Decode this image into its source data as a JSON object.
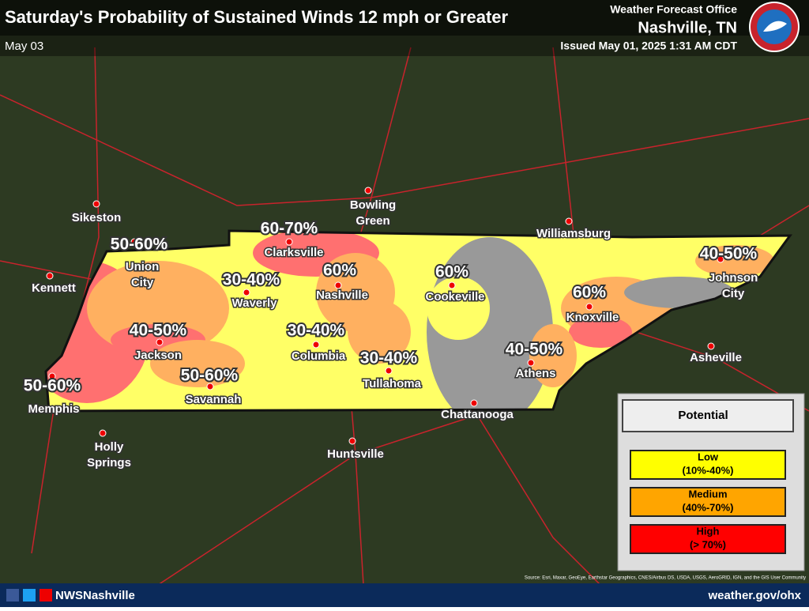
{
  "header": {
    "title": "Saturday's Probability of Sustained Winds 12 mph or Greater",
    "date": "May 03",
    "office": "Weather Forecast Office",
    "location": "Nashville, TN",
    "issued": "Issued May 01, 2025 1:31 AM CDT"
  },
  "cities": [
    "Sikeston",
    "Kennett",
    "Union City",
    "Memphis",
    "Jackson",
    "Savannah",
    "Holly Springs",
    "Waverly",
    "Clarksville",
    "Nashville",
    "Columbia",
    "Tullahoma",
    "Huntsville",
    "Bowling Green",
    "Cookeville",
    "Williamsburg",
    "Knoxville",
    "Athens",
    "Chattanooga",
    "Johnson City",
    "Asheville"
  ],
  "probability_labels": [
    "50-60%",
    "60-70%",
    "30-40%",
    "60%",
    "60%",
    "60%",
    "40-50%",
    "40-50%",
    "30-40%",
    "30-40%",
    "40-50%",
    "50-60%",
    "50-60%"
  ],
  "legend": {
    "title": "Potential",
    "items": [
      {
        "label": "Low",
        "range": "(10%-40%)",
        "color": "#ffff00"
      },
      {
        "label": "Medium",
        "range": "(40%-70%)",
        "color": "#ffa500"
      },
      {
        "label": "High",
        "range": "(> 70%)",
        "color": "#ff0000"
      }
    ]
  },
  "footer": {
    "social": "NWSNashville",
    "url": "weather.gov/ohx",
    "source": "Source: Esri, Maxar, GeoEye, Earthstar Geographics, CNES/Airbus DS, USDA, USGS, AeroGRID, IGN, and the GIS User Community"
  }
}
